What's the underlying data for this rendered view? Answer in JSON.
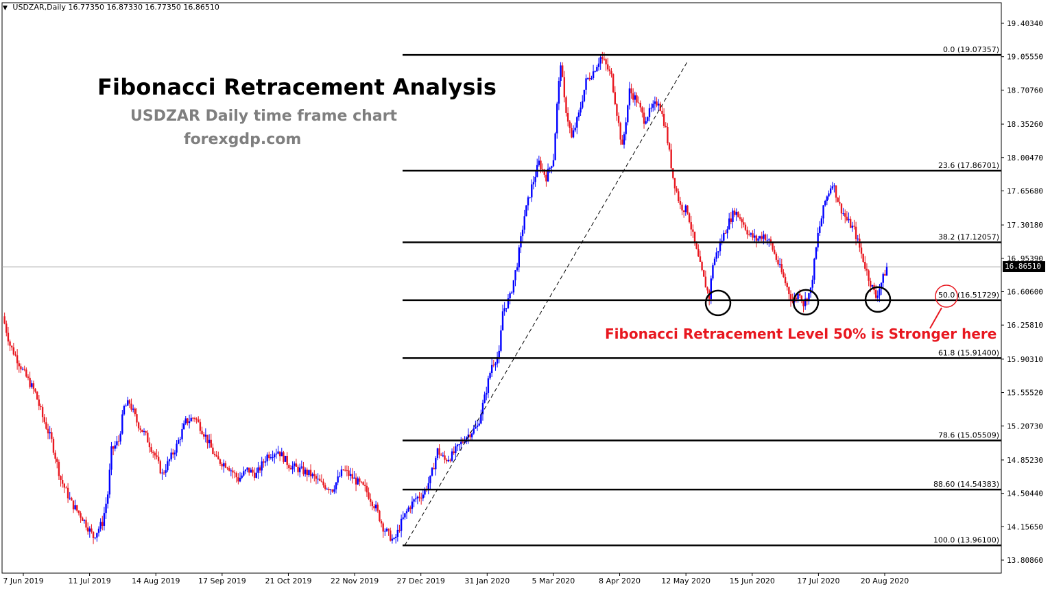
{
  "header": {
    "symbol": "USDZAR,Daily",
    "ohlc": "16.77350 16.87330 16.77350 16.86510"
  },
  "annotations": {
    "title": "Fibonacci Retracement Analysis",
    "subtitle": "USDZAR Daily time frame chart",
    "site": "forexgdp.com",
    "note": "Fibonacci Retracement Level 50% is Stronger here"
  },
  "current_price_label": "16.86510",
  "colors": {
    "bull": "#0000ff",
    "bear": "#e8171f",
    "note": "#e8171f",
    "fib_lines": "#000000",
    "price_line": "#a0a0a0"
  },
  "chart_data": {
    "type": "candlestick",
    "symbol": "USDZAR",
    "timeframe": "Daily",
    "y_ticks": [
      "19.40340",
      "19.05550",
      "18.70760",
      "18.35260",
      "18.00470",
      "17.65680",
      "17.30180",
      "16.95390",
      "16.60600",
      "16.25810",
      "15.90310",
      "15.55520",
      "15.20730",
      "14.85230",
      "14.50440",
      "14.15650",
      "13.80860"
    ],
    "x_ticks": [
      "7 Jun 2019",
      "11 Jul 2019",
      "14 Aug 2019",
      "17 Sep 2019",
      "21 Oct 2019",
      "22 Nov 2019",
      "27 Dec 2019",
      "31 Jan 2020",
      "5 Mar 2020",
      "8 Apr 2020",
      "12 May 2020",
      "15 Jun 2020",
      "17 Jul 2020",
      "20 Aug 2020"
    ],
    "ylim": [
      13.7,
      19.55
    ],
    "fibonacci_levels": [
      {
        "label": "0.0 (19.07357)",
        "price": 19.07357
      },
      {
        "label": "23.6 (17.86701)",
        "price": 17.86701
      },
      {
        "label": "38.2 (17.12057)",
        "price": 17.12057
      },
      {
        "label": "50.0 (16.51729)",
        "price": 16.51729
      },
      {
        "label": "61.8 (15.91400)",
        "price": 15.914
      },
      {
        "label": "78.6 (15.05509)",
        "price": 15.05509
      },
      {
        "label": "88.60 (14.54383)",
        "price": 14.54383
      },
      {
        "label": "100.0 (13.96100)",
        "price": 13.961
      }
    ],
    "current_price": 16.8651,
    "path_points": [
      [
        0,
        16.35
      ],
      [
        4,
        16.05
      ],
      [
        12,
        15.75
      ],
      [
        18,
        15.55
      ],
      [
        22,
        15.3
      ],
      [
        27,
        15.05
      ],
      [
        32,
        14.65
      ],
      [
        38,
        14.4
      ],
      [
        44,
        14.25
      ],
      [
        50,
        14.05
      ],
      [
        55,
        14.2
      ],
      [
        58,
        14.5
      ],
      [
        60,
        14.95
      ],
      [
        64,
        15.05
      ],
      [
        67,
        15.4
      ],
      [
        70,
        15.45
      ],
      [
        74,
        15.25
      ],
      [
        79,
        15.1
      ],
      [
        84,
        14.9
      ],
      [
        88,
        14.7
      ],
      [
        92,
        14.85
      ],
      [
        96,
        15.0
      ],
      [
        101,
        15.25
      ],
      [
        106,
        15.3
      ],
      [
        112,
        15.1
      ],
      [
        118,
        14.85
      ],
      [
        124,
        14.8
      ],
      [
        130,
        14.65
      ],
      [
        135,
        14.75
      ],
      [
        140,
        14.7
      ],
      [
        146,
        14.9
      ],
      [
        152,
        14.95
      ],
      [
        158,
        14.8
      ],
      [
        164,
        14.75
      ],
      [
        170,
        14.7
      ],
      [
        176,
        14.6
      ],
      [
        182,
        14.55
      ],
      [
        188,
        14.75
      ],
      [
        194,
        14.65
      ],
      [
        200,
        14.55
      ],
      [
        206,
        14.35
      ],
      [
        210,
        14.15
      ],
      [
        214,
        14.05
      ],
      [
        216,
        14.0
      ],
      [
        220,
        14.2
      ],
      [
        224,
        14.35
      ],
      [
        228,
        14.45
      ],
      [
        232,
        14.5
      ],
      [
        236,
        14.65
      ],
      [
        240,
        14.95
      ],
      [
        244,
        14.85
      ],
      [
        248,
        14.9
      ],
      [
        252,
        15.0
      ],
      [
        256,
        15.1
      ],
      [
        262,
        15.2
      ],
      [
        266,
        15.5
      ],
      [
        270,
        15.85
      ],
      [
        274,
        15.95
      ],
      [
        276,
        16.4
      ],
      [
        280,
        16.55
      ],
      [
        284,
        16.9
      ],
      [
        288,
        17.4
      ],
      [
        292,
        17.7
      ],
      [
        296,
        17.95
      ],
      [
        300,
        17.8
      ],
      [
        304,
        18.0
      ],
      [
        306,
        18.55
      ],
      [
        308,
        19.0
      ],
      [
        310,
        18.6
      ],
      [
        314,
        18.2
      ],
      [
        318,
        18.45
      ],
      [
        322,
        18.8
      ],
      [
        326,
        18.9
      ],
      [
        330,
        19.05
      ],
      [
        332,
        19.0
      ],
      [
        336,
        18.85
      ],
      [
        340,
        18.35
      ],
      [
        342,
        18.1
      ],
      [
        346,
        18.7
      ],
      [
        350,
        18.6
      ],
      [
        354,
        18.4
      ],
      [
        358,
        18.5
      ],
      [
        362,
        18.6
      ],
      [
        366,
        18.3
      ],
      [
        370,
        17.8
      ],
      [
        374,
        17.5
      ],
      [
        378,
        17.45
      ],
      [
        382,
        17.1
      ],
      [
        386,
        16.8
      ],
      [
        390,
        16.55
      ],
      [
        392,
        16.9
      ],
      [
        396,
        17.1
      ],
      [
        400,
        17.3
      ],
      [
        404,
        17.45
      ],
      [
        408,
        17.35
      ],
      [
        412,
        17.2
      ],
      [
        416,
        17.15
      ],
      [
        420,
        17.2
      ],
      [
        424,
        17.1
      ],
      [
        428,
        16.9
      ],
      [
        432,
        16.7
      ],
      [
        436,
        16.5
      ],
      [
        440,
        16.6
      ],
      [
        442,
        16.48
      ],
      [
        446,
        16.62
      ],
      [
        450,
        17.2
      ],
      [
        454,
        17.55
      ],
      [
        458,
        17.75
      ],
      [
        462,
        17.5
      ],
      [
        466,
        17.35
      ],
      [
        470,
        17.25
      ],
      [
        474,
        17.0
      ],
      [
        478,
        16.75
      ],
      [
        482,
        16.55
      ],
      [
        486,
        16.75
      ],
      [
        488,
        16.86
      ]
    ]
  }
}
